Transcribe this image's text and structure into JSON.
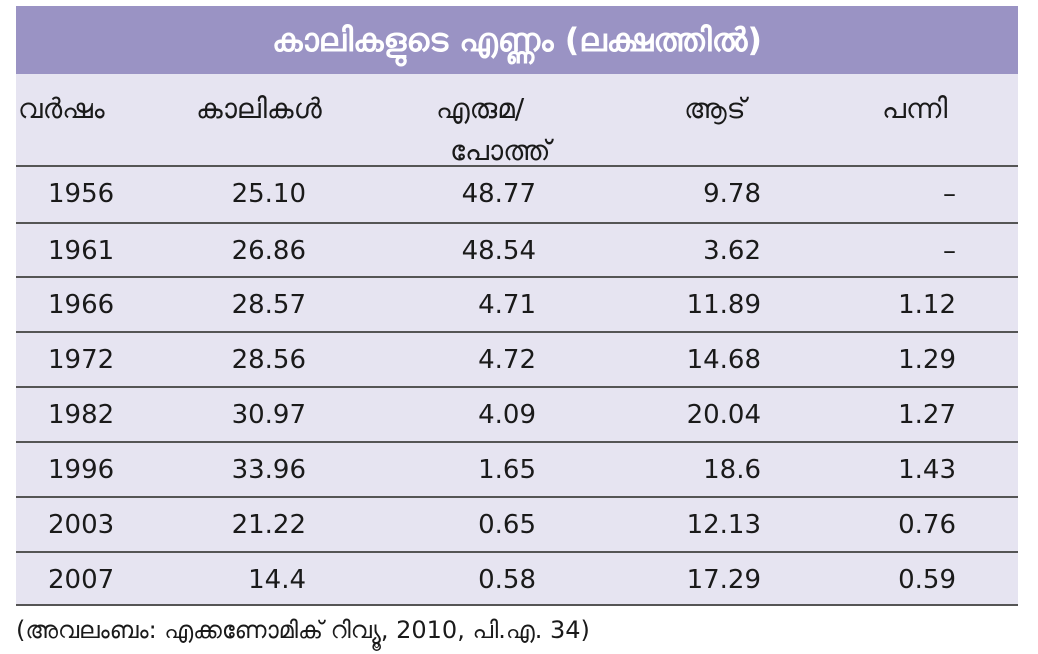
{
  "table": {
    "title": "കാലികളുടെ എണ്ണം (ലക്ഷത്തിൽ)",
    "headers": {
      "year": "വർഷം",
      "cattle": "കാലികൾ",
      "buffalo_line1": "എരുമ/",
      "buffalo_line2": "പോത്ത്",
      "goat": "ആട്",
      "pig": "പന്നി"
    },
    "rows": [
      {
        "year": "1956",
        "cattle": "25.10",
        "buffalo": "48.77",
        "goat": "9.78",
        "pig": "–"
      },
      {
        "year": "1961",
        "cattle": "26.86",
        "buffalo": "48.54",
        "goat": "3.62",
        "pig": "–"
      },
      {
        "year": "1966",
        "cattle": "28.57",
        "buffalo": "4.71",
        "goat": "11.89",
        "pig": "1.12"
      },
      {
        "year": "1972",
        "cattle": "28.56",
        "buffalo": "4.72",
        "goat": "14.68",
        "pig": "1.29"
      },
      {
        "year": "1982",
        "cattle": "30.97",
        "buffalo": "4.09",
        "goat": "20.04",
        "pig": "1.27"
      },
      {
        "year": "1996",
        "cattle": "33.96",
        "buffalo": "1.65",
        "goat": "18.6",
        "pig": "1.43"
      },
      {
        "year": "2003",
        "cattle": "21.22",
        "buffalo": "0.65",
        "goat": "12.13",
        "pig": "0.76"
      },
      {
        "year": "2007",
        "cattle": "14.4",
        "buffalo": "0.58",
        "goat": "17.29",
        "pig": "0.59"
      }
    ],
    "source": "(അവലംബം: എക്കണോമിക് റിവ്യൂ, 2010, പി.എ. 34)"
  },
  "colors": {
    "title_bg": "#9a93c4",
    "panel_bg": "#e6e4f1",
    "rule": "#555555"
  }
}
